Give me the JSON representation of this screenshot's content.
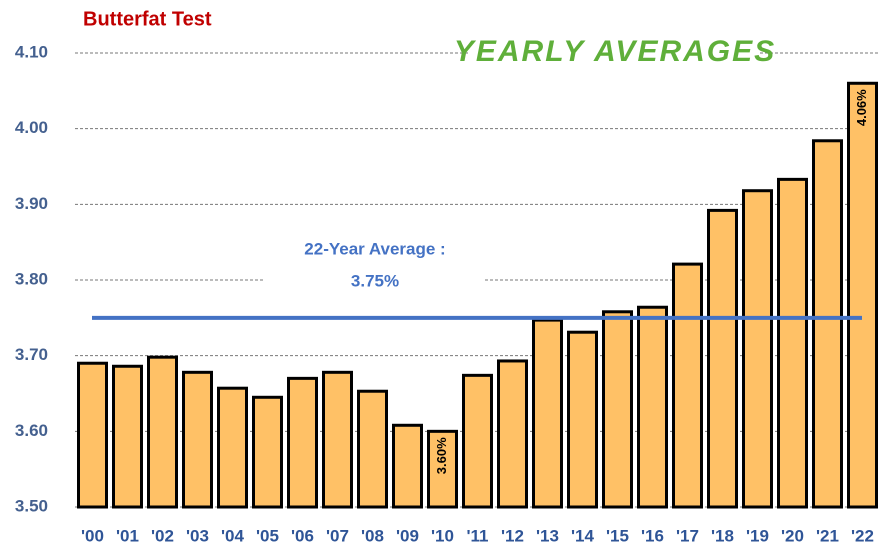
{
  "chart_data": {
    "type": "bar",
    "title": "Butterfat Test",
    "subtitle": "YEARLY AVERAGES",
    "categories": [
      "'00",
      "'01",
      "'02",
      "'03",
      "'04",
      "'05",
      "'06",
      "'07",
      "'08",
      "'09",
      "'10",
      "'11",
      "'12",
      "'13",
      "'14",
      "'15",
      "'16",
      "'17",
      "'18",
      "'19",
      "'20",
      "'21",
      "'22"
    ],
    "values": [
      3.69,
      3.686,
      3.698,
      3.678,
      3.657,
      3.645,
      3.67,
      3.678,
      3.653,
      3.608,
      3.6,
      3.674,
      3.693,
      3.747,
      3.731,
      3.758,
      3.764,
      3.821,
      3.892,
      3.918,
      3.933,
      3.984,
      4.06
    ],
    "value_labels": [
      null,
      null,
      null,
      null,
      null,
      null,
      null,
      null,
      null,
      null,
      "3.60%",
      null,
      null,
      null,
      null,
      null,
      null,
      null,
      null,
      null,
      null,
      null,
      "4.06%"
    ],
    "color": "#FFC166",
    "ylim": [
      3.5,
      4.1
    ],
    "yticks": [
      {
        "value": 3.5,
        "label": "3.50"
      },
      {
        "value": 3.6,
        "label": "3.60"
      },
      {
        "value": 3.7,
        "label": "3.70"
      },
      {
        "value": 3.8,
        "label": "3.80"
      },
      {
        "value": 3.9,
        "label": "3.90"
      },
      {
        "value": 4.0,
        "label": "4.00"
      },
      {
        "value": 4.1,
        "label": "4.10"
      }
    ],
    "grid": true,
    "average": {
      "value": 3.75,
      "label": "22-Year Average :",
      "value_label": "3.75%",
      "color": "#4472C4"
    }
  }
}
